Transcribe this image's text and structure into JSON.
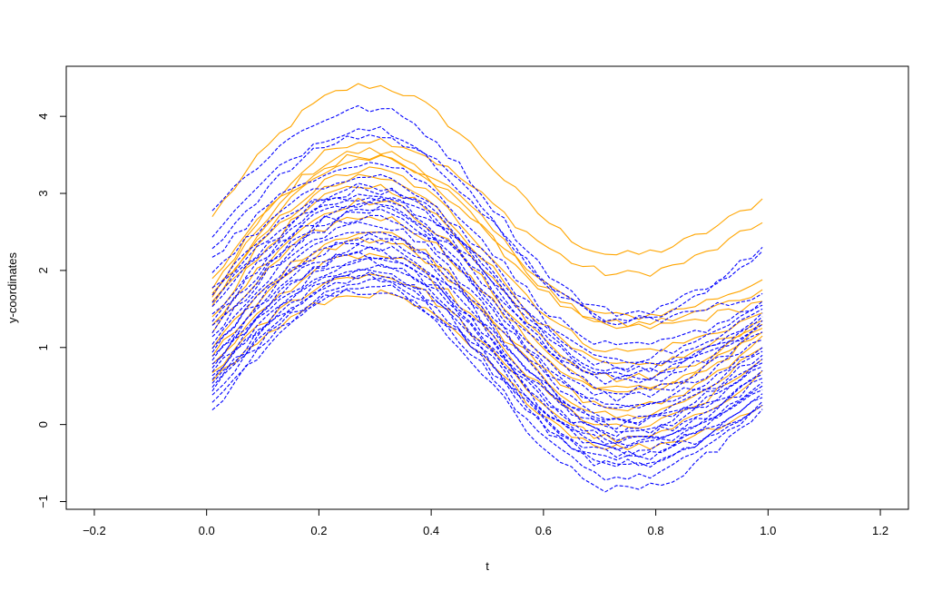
{
  "chart_data": {
    "type": "line",
    "title": "",
    "xlabel": "t",
    "ylabel": "y-coordinates",
    "xlim": [
      -0.25,
      1.25
    ],
    "ylim": [
      -1.1,
      4.65
    ],
    "x_ticks": [
      -0.2,
      0.0,
      0.2,
      0.4,
      0.6,
      0.8,
      1.0,
      1.2
    ],
    "x_tick_labels": [
      "−0.2",
      "0.0",
      "0.2",
      "0.4",
      "0.6",
      "0.8",
      "1.0",
      "1.2"
    ],
    "y_ticks": [
      -1,
      0,
      1,
      2,
      3,
      4
    ],
    "y_tick_labels": [
      "−1",
      "0",
      "1",
      "2",
      "3",
      "4"
    ],
    "grid": false,
    "legend": "none",
    "colors": {
      "group_a": "#FFA500",
      "group_b": "#0000FF"
    },
    "x": [
      0.01,
      0.03,
      0.05,
      0.07,
      0.09,
      0.11,
      0.13,
      0.15,
      0.17,
      0.19,
      0.21,
      0.23,
      0.25,
      0.27,
      0.29,
      0.31,
      0.33,
      0.35,
      0.37,
      0.39,
      0.41,
      0.43,
      0.45,
      0.47,
      0.49,
      0.51,
      0.53,
      0.55,
      0.57,
      0.59,
      0.61,
      0.63,
      0.65,
      0.67,
      0.69,
      0.71,
      0.73,
      0.75,
      0.77,
      0.79,
      0.81,
      0.83,
      0.85,
      0.87,
      0.89,
      0.91,
      0.93,
      0.95,
      0.97,
      0.99
    ],
    "series_groups": [
      {
        "group": "group_a",
        "line_style": "solid",
        "curves": [
          {
            "y0": 2.6,
            "peak": 4.4,
            "trough": 2.2,
            "y_end": 2.93
          },
          {
            "y0": 1.65,
            "peak": 3.7,
            "trough": 1.95,
            "y_end": 2.62
          },
          {
            "y0": 1.8,
            "peak": 3.55,
            "trough": 1.4,
            "y_end": 1.88
          },
          {
            "y0": 1.6,
            "peak": 3.5,
            "trough": 1.3,
            "y_end": 1.75
          },
          {
            "y0": 1.55,
            "peak": 3.45,
            "trough": 1.25,
            "y_end": 1.6
          },
          {
            "y0": 1.5,
            "peak": 3.3,
            "trough": 0.95,
            "y_end": 1.45
          },
          {
            "y0": 1.45,
            "peak": 3.2,
            "trough": 0.75,
            "y_end": 1.35
          },
          {
            "y0": 1.3,
            "peak": 3.1,
            "trough": 0.6,
            "y_end": 1.3
          },
          {
            "y0": 1.2,
            "peak": 2.9,
            "trough": 0.45,
            "y_end": 1.25
          },
          {
            "y0": 1.1,
            "peak": 2.7,
            "trough": 0.4,
            "y_end": 1.2
          },
          {
            "y0": 0.9,
            "peak": 2.5,
            "trough": 0.2,
            "y_end": 1.15
          },
          {
            "y0": 0.8,
            "peak": 2.4,
            "trough": 0.1,
            "y_end": 1.0
          },
          {
            "y0": 0.7,
            "peak": 2.2,
            "trough": -0.05,
            "y_end": 0.85
          },
          {
            "y0": 0.6,
            "peak": 1.95,
            "trough": -0.2,
            "y_end": 0.7
          },
          {
            "y0": 0.5,
            "peak": 1.7,
            "trough": -0.3,
            "y_end": 0.25
          }
        ]
      },
      {
        "group": "group_b",
        "line_style": "dashed",
        "curves": [
          {
            "y0": 2.7,
            "peak": 4.1,
            "trough": 1.45,
            "y_end": 2.3
          },
          {
            "y0": 2.35,
            "peak": 3.85,
            "trough": 1.35,
            "y_end": 2.25
          },
          {
            "y0": 2.2,
            "peak": 3.75,
            "trough": 1.35,
            "y_end": 1.7
          },
          {
            "y0": 2.1,
            "peak": 3.4,
            "trough": 1.0,
            "y_end": 1.6
          },
          {
            "y0": 1.9,
            "peak": 3.2,
            "trough": 0.85,
            "y_end": 1.55
          },
          {
            "y0": 1.7,
            "peak": 3.1,
            "trough": 0.75,
            "y_end": 1.5
          },
          {
            "y0": 1.6,
            "peak": 3.05,
            "trough": 0.7,
            "y_end": 1.45
          },
          {
            "y0": 1.5,
            "peak": 3.0,
            "trough": 0.65,
            "y_end": 1.4
          },
          {
            "y0": 1.45,
            "peak": 2.95,
            "trough": 0.6,
            "y_end": 1.35
          },
          {
            "y0": 1.35,
            "peak": 2.9,
            "trough": 0.55,
            "y_end": 1.3
          },
          {
            "y0": 1.25,
            "peak": 2.85,
            "trough": 0.45,
            "y_end": 1.2
          },
          {
            "y0": 1.2,
            "peak": 2.8,
            "trough": 0.35,
            "y_end": 1.1
          },
          {
            "y0": 1.1,
            "peak": 2.75,
            "trough": 0.25,
            "y_end": 1.0
          },
          {
            "y0": 1.05,
            "peak": 2.7,
            "trough": 0.2,
            "y_end": 0.95
          },
          {
            "y0": 0.95,
            "peak": 2.6,
            "trough": 0.1,
            "y_end": 0.9
          },
          {
            "y0": 0.9,
            "peak": 2.5,
            "trough": 0.05,
            "y_end": 0.85
          },
          {
            "y0": 0.85,
            "peak": 2.45,
            "trough": 0.0,
            "y_end": 0.8
          },
          {
            "y0": 0.8,
            "peak": 2.4,
            "trough": -0.05,
            "y_end": 0.75
          },
          {
            "y0": 0.75,
            "peak": 2.3,
            "trough": -0.1,
            "y_end": 0.7
          },
          {
            "y0": 0.7,
            "peak": 2.25,
            "trough": -0.15,
            "y_end": 0.65
          },
          {
            "y0": 0.65,
            "peak": 2.2,
            "trough": -0.2,
            "y_end": 0.6
          },
          {
            "y0": 0.6,
            "peak": 2.15,
            "trough": -0.25,
            "y_end": 0.55
          },
          {
            "y0": 0.55,
            "peak": 2.1,
            "trough": -0.3,
            "y_end": 0.5
          },
          {
            "y0": 0.5,
            "peak": 2.05,
            "trough": -0.35,
            "y_end": 0.45
          },
          {
            "y0": 0.45,
            "peak": 2.0,
            "trough": -0.4,
            "y_end": 0.4
          },
          {
            "y0": 0.4,
            "peak": 1.95,
            "trough": -0.45,
            "y_end": 0.35
          },
          {
            "y0": 0.35,
            "peak": 1.9,
            "trough": -0.5,
            "y_end": 0.3
          },
          {
            "y0": 0.3,
            "peak": 1.85,
            "trough": -0.55,
            "y_end": 0.25
          },
          {
            "y0": 0.2,
            "peak": 1.8,
            "trough": -0.7,
            "y_end": 0.25
          },
          {
            "y0": 0.1,
            "peak": 1.75,
            "trough": -0.85,
            "y_end": 0.2
          }
        ]
      }
    ]
  }
}
